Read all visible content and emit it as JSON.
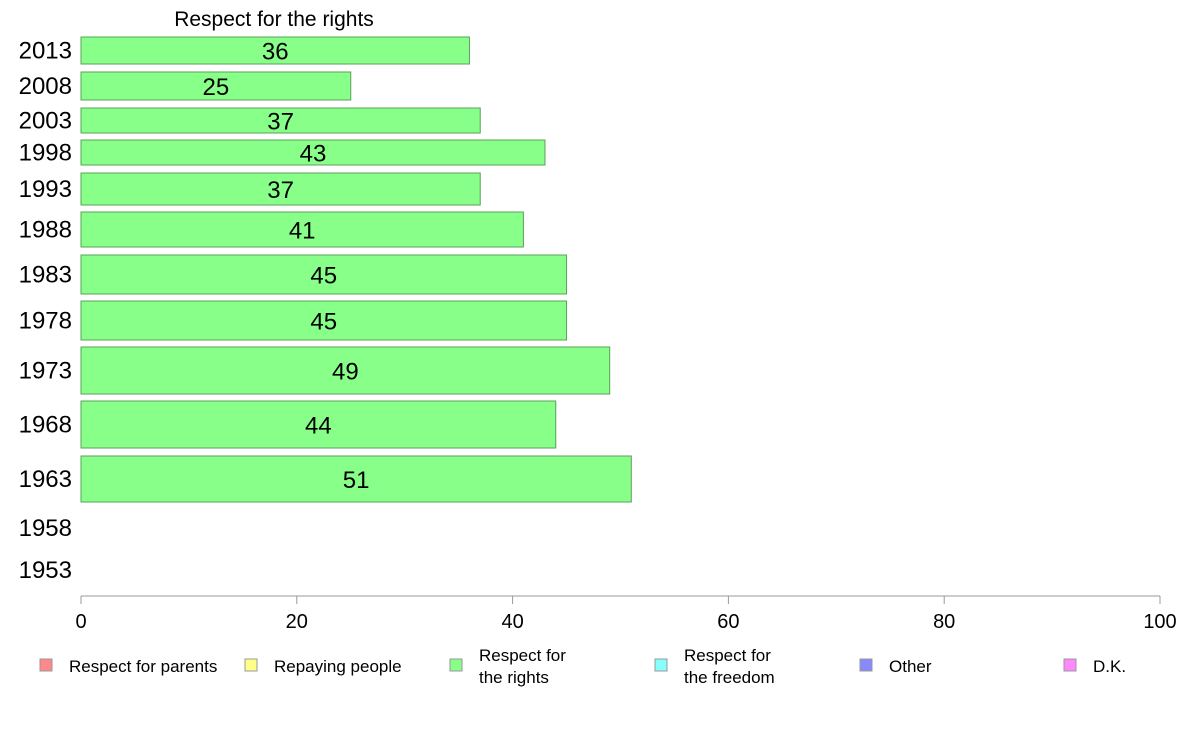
{
  "chart_data": {
    "type": "bar",
    "orientation": "horizontal",
    "title": "Respect for the rights",
    "categories": [
      "2013",
      "2008",
      "2003",
      "1998",
      "1993",
      "1988",
      "1983",
      "1978",
      "1973",
      "1968",
      "1963",
      "1958",
      "1953"
    ],
    "values": [
      36,
      25,
      37,
      43,
      37,
      41,
      45,
      45,
      49,
      44,
      51,
      null,
      null
    ],
    "x_ticks": [
      "0",
      "20",
      "40",
      "60",
      "80",
      "100"
    ],
    "xlim": [
      0,
      100
    ],
    "grid": false,
    "bar_color": "#88ff88",
    "bar_edge_color": "#5aa05a",
    "legend_position": "bottom",
    "legend": [
      {
        "label": "Respect for parents",
        "color": "#ff8888"
      },
      {
        "label": "Repaying people",
        "color": "#ffff88"
      },
      {
        "label": "Respect for\nthe rights",
        "color": "#88ff88"
      },
      {
        "label": "Respect for\nthe freedom",
        "color": "#88ffff"
      },
      {
        "label": "Other",
        "color": "#8888ff"
      },
      {
        "label": "D.K.",
        "color": "#ff88ff"
      }
    ]
  }
}
